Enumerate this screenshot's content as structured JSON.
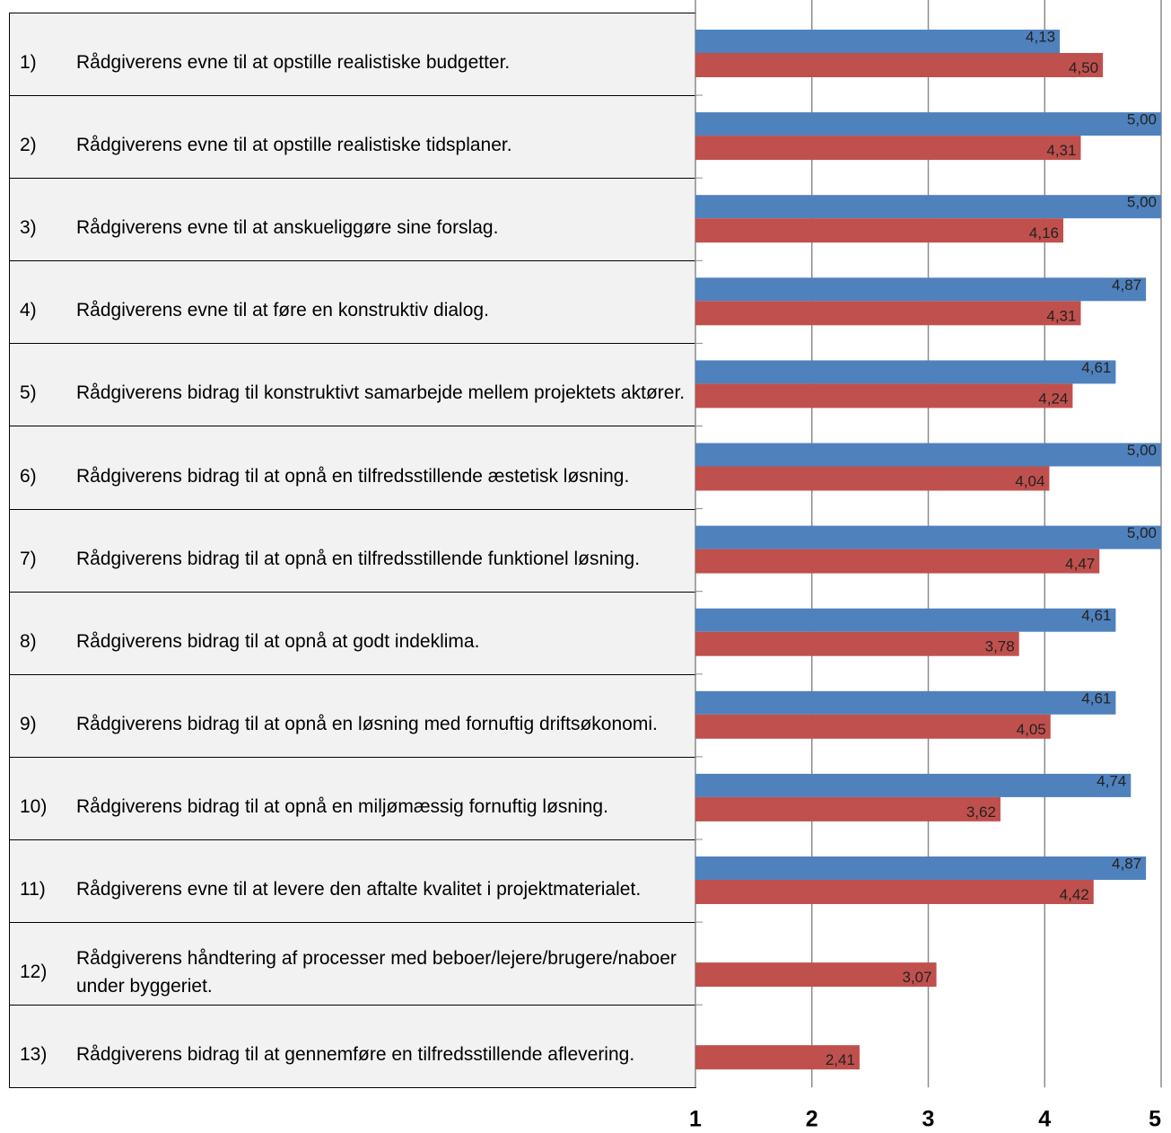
{
  "chart_data": {
    "type": "bar",
    "orientation": "horizontal",
    "row_numbers": [
      "1)",
      "2)",
      "3)",
      "4)",
      "5)",
      "6)",
      "7)",
      "8)",
      "9)",
      "10)",
      "11)",
      "12)",
      "13)"
    ],
    "categories": [
      "Rådgiverens evne til at opstille realistiske budgetter.",
      "Rådgiverens evne til at opstille realistiske tidsplaner.",
      "Rådgiverens evne til at anskueliggøre sine forslag.",
      "Rådgiverens evne til at føre en konstruktiv dialog.",
      "Rådgiverens bidrag til konstruktivt samarbejde mellem projektets aktører.",
      "Rådgiverens bidrag til at opnå en tilfredsstillende æstetisk løsning.",
      "Rådgiverens bidrag til at opnå en tilfredsstillende funktionel løsning.",
      "Rådgiverens bidrag til at opnå at godt indeklima.",
      "Rådgiverens bidrag til at opnå en løsning med fornuftig driftsøkonomi.",
      "Rådgiverens bidrag til at opnå en miljømæssig fornuftig løsning.",
      "Rådgiverens evne til at levere den aftalte kvalitet i projektmaterialet.",
      "Rådgiverens håndtering af processer med beboer/lejere/brugere/naboer under byggeriet.",
      "Rådgiverens bidrag til at gennemføre en tilfredsstillende aflevering."
    ],
    "series": [
      {
        "color": "#4f81bd",
        "values": [
          4.13,
          5.0,
          5.0,
          4.87,
          4.61,
          5.0,
          5.0,
          4.61,
          4.61,
          4.74,
          4.87,
          null,
          null
        ],
        "value_labels": [
          "4,13",
          "5,00",
          "5,00",
          "4,87",
          "4,61",
          "5,00",
          "5,00",
          "4,61",
          "4,61",
          "4,74",
          "4,87",
          null,
          null
        ]
      },
      {
        "color": "#c0504d",
        "values": [
          4.5,
          4.31,
          4.16,
          4.31,
          4.24,
          4.04,
          4.47,
          3.78,
          4.05,
          3.62,
          4.42,
          3.07,
          2.41
        ],
        "value_labels": [
          "4,50",
          "4,31",
          "4,16",
          "4,31",
          "4,24",
          "4,04",
          "4,47",
          "3,78",
          "4,05",
          "3,62",
          "4,42",
          "3,07",
          "2,41"
        ]
      }
    ],
    "xlim": [
      1,
      5
    ],
    "xticks": [
      1,
      2,
      3,
      4,
      5
    ],
    "grid": true
  }
}
